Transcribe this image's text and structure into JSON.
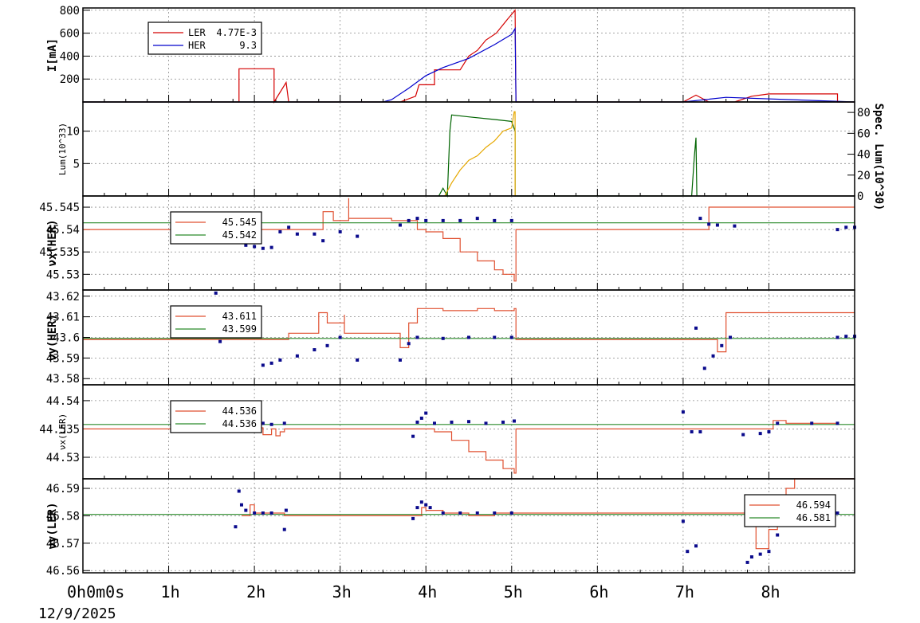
{
  "date_label": "12/9/2025",
  "x_ticks": [
    {
      "h": 0,
      "label": "0h0m0s"
    },
    {
      "h": 1,
      "label": "1h"
    },
    {
      "h": 2,
      "label": "2h"
    },
    {
      "h": 3,
      "label": "3h"
    },
    {
      "h": 4,
      "label": "4h"
    },
    {
      "h": 5,
      "label": "5h"
    },
    {
      "h": 6,
      "label": "6h"
    },
    {
      "h": 7,
      "label": "7h"
    },
    {
      "h": 8,
      "label": "8h"
    }
  ],
  "chart_data": [
    {
      "type": "line",
      "ylabel": "I[mA]",
      "xlim": [
        0,
        9.0
      ],
      "ylim": [
        0,
        820
      ],
      "yticks": [
        200,
        400,
        600,
        800
      ],
      "ytick_labels": [
        "200",
        "400",
        "600",
        "800"
      ],
      "legend_placement": "top-left",
      "series": [
        {
          "name": "LER",
          "legend_value": "4.77E-3",
          "color": "#d40000",
          "x": [
            0,
            1.52,
            1.82,
            1.82,
            2.23,
            2.23,
            2.37,
            2.4,
            3.7,
            3.88,
            3.92,
            4.1,
            4.1,
            4.4,
            4.5,
            4.6,
            4.7,
            4.82,
            4.95,
            5.04,
            5.04,
            5.05,
            7.0,
            7.15,
            7.3,
            7.6,
            7.8,
            8.0,
            8.8,
            8.8,
            9.0
          ],
          "y": [
            0,
            0,
            0,
            290,
            290,
            0,
            170,
            0,
            0,
            50,
            150,
            150,
            280,
            280,
            400,
            450,
            540,
            600,
            720,
            800,
            800,
            0,
            0,
            60,
            0,
            0,
            50,
            70,
            70,
            0,
            0
          ]
        },
        {
          "name": "HER",
          "legend_value": "9.3",
          "color": "#0000cc",
          "x": [
            0,
            3.5,
            3.6,
            3.8,
            4.0,
            4.2,
            4.5,
            4.8,
            5.0,
            5.04,
            5.04,
            5.05,
            7.0,
            7.5,
            9.0
          ],
          "y": [
            0,
            0,
            20,
            120,
            230,
            300,
            380,
            500,
            590,
            640,
            640,
            0,
            0,
            40,
            0
          ]
        }
      ]
    },
    {
      "type": "line",
      "ylabel": "Lum(10^33)",
      "ylabel_right": "Spec. Lum(10^30)",
      "xlim": [
        0,
        9.0
      ],
      "ylim": [
        0,
        14.5
      ],
      "yticks": [
        5,
        10
      ],
      "ytick_labels": [
        "5",
        "10"
      ],
      "y2lim": [
        0,
        90
      ],
      "y2ticks": [
        0,
        20,
        40,
        60,
        80
      ],
      "y2tick_labels": [
        "0",
        "20",
        "40",
        "60",
        "80"
      ],
      "series": [
        {
          "color": "#006400",
          "x": [
            4.15,
            4.2,
            4.25,
            4.28,
            4.3,
            4.5,
            4.8,
            5.0,
            5.04,
            5.04,
            7.1,
            7.13,
            7.15,
            7.16
          ],
          "y": [
            0,
            1.2,
            0,
            10,
            12.5,
            12.2,
            11.8,
            11.5,
            10,
            0,
            0,
            6,
            9,
            0
          ]
        },
        {
          "color": "#e6a800",
          "x": [
            4.22,
            4.3,
            4.4,
            4.5,
            4.6,
            4.7,
            4.8,
            4.9,
            5.0,
            5.03,
            5.04,
            5.04
          ],
          "y": [
            0,
            2,
            4,
            5.5,
            6.2,
            7.5,
            8.5,
            10,
            10.5,
            13,
            13,
            0
          ]
        }
      ]
    },
    {
      "type": "scatter",
      "ylabel": "νx(HER)",
      "xlim": [
        0,
        9.0
      ],
      "ylim": [
        45.5265,
        45.5475
      ],
      "yticks": [
        45.53,
        45.535,
        45.54,
        45.545
      ],
      "ytick_labels": [
        "45.53",
        "45.535",
        "45.54",
        "45.545"
      ],
      "legend_placement": "top-left",
      "series": [
        {
          "name": "45.545",
          "color": "#e05030",
          "kind": "step",
          "x": [
            0,
            2.8,
            2.8,
            2.92,
            3.1,
            3.1,
            3.6,
            3.9,
            4.0,
            4.2,
            4.4,
            4.6,
            4.8,
            4.9,
            5.03,
            5.05,
            7.3,
            7.3,
            9.0
          ],
          "y": [
            45.54,
            45.54,
            45.544,
            45.542,
            45.547,
            45.5425,
            45.542,
            45.54,
            45.5395,
            45.538,
            45.535,
            45.533,
            45.531,
            45.53,
            45.5285,
            45.54,
            45.54,
            45.545,
            45.545
          ]
        },
        {
          "name": "45.542",
          "color": "#2a8a2a",
          "kind": "flat",
          "x": [
            0,
            9.0
          ],
          "y": [
            45.5415,
            45.5415
          ]
        },
        {
          "color": "#0a0a8c",
          "kind": "dots",
          "x": [
            1.55,
            1.6,
            1.75,
            1.9,
            2.0,
            2.1,
            2.2,
            2.3,
            2.4,
            2.5,
            2.7,
            2.8,
            3.0,
            3.2,
            3.7,
            3.8,
            3.9,
            4.0,
            4.2,
            4.4,
            4.6,
            4.8,
            5.0,
            7.2,
            7.3,
            7.4,
            7.6,
            8.8,
            8.9,
            9.0
          ],
          "y": [
            45.5375,
            45.5385,
            45.539,
            45.5365,
            45.5362,
            45.5358,
            45.536,
            45.5395,
            45.5405,
            45.539,
            45.539,
            45.5375,
            45.5395,
            45.5385,
            45.541,
            45.542,
            45.5425,
            45.542,
            45.542,
            45.542,
            45.5425,
            45.542,
            45.542,
            45.5425,
            45.5412,
            45.541,
            45.5408,
            45.54,
            45.5405,
            45.5405
          ]
        }
      ]
    },
    {
      "type": "scatter",
      "ylabel": "νy(HER)",
      "xlim": [
        0,
        9.0
      ],
      "ylim": [
        43.577,
        43.623
      ],
      "yticks": [
        43.58,
        43.59,
        43.6,
        43.61,
        43.62
      ],
      "ytick_labels": [
        "43.58",
        "43.59",
        "43.6",
        "43.61",
        "43.62"
      ],
      "legend_placement": "top-left",
      "series": [
        {
          "name": "43.611",
          "color": "#e05030",
          "kind": "step",
          "x": [
            0,
            2.4,
            2.4,
            2.75,
            2.75,
            2.85,
            3.05,
            3.05,
            3.7,
            3.8,
            3.9,
            4.2,
            4.6,
            4.8,
            5.03,
            5.05,
            7.2,
            7.4,
            7.5,
            7.5,
            9.0
          ],
          "y": [
            43.599,
            43.599,
            43.602,
            43.602,
            43.612,
            43.607,
            43.611,
            43.602,
            43.595,
            43.607,
            43.614,
            43.613,
            43.614,
            43.613,
            43.614,
            43.599,
            43.599,
            43.593,
            43.605,
            43.612,
            43.612
          ]
        },
        {
          "name": "43.599",
          "color": "#2a8a2a",
          "kind": "flat",
          "x": [
            0,
            9.0
          ],
          "y": [
            43.5995,
            43.5995
          ]
        },
        {
          "color": "#0a0a8c",
          "kind": "dots",
          "x": [
            1.55,
            1.6,
            2.1,
            2.2,
            2.3,
            2.5,
            2.7,
            2.85,
            3.0,
            3.2,
            3.7,
            3.8,
            3.9,
            4.2,
            4.5,
            4.8,
            5.0,
            7.15,
            7.25,
            7.35,
            7.45,
            7.55,
            8.8,
            8.9,
            9.0
          ],
          "y": [
            43.6215,
            43.598,
            43.5865,
            43.5875,
            43.589,
            43.591,
            43.594,
            43.596,
            43.6,
            43.589,
            43.589,
            43.597,
            43.6,
            43.5995,
            43.6,
            43.6,
            43.6,
            43.6045,
            43.585,
            43.591,
            43.596,
            43.6,
            43.6,
            43.6005,
            43.6005
          ]
        }
      ]
    },
    {
      "type": "scatter",
      "ylabel": "νx(LER)",
      "xlim": [
        0,
        9.0
      ],
      "ylim": [
        44.5262,
        44.5428
      ],
      "yticks": [
        44.53,
        44.535,
        44.54
      ],
      "ytick_labels": [
        "44.53",
        "44.535",
        "44.54"
      ],
      "legend_placement": "top-left",
      "series": [
        {
          "name": "44.536",
          "color": "#e05030",
          "kind": "step",
          "x": [
            0,
            1.8,
            1.9,
            2.1,
            2.2,
            2.25,
            2.3,
            2.35,
            3.9,
            3.95,
            4.1,
            4.3,
            4.5,
            4.7,
            4.9,
            5.03,
            5.05,
            8.0,
            8.05,
            8.2,
            8.8
          ],
          "y": [
            44.535,
            44.535,
            44.5352,
            44.534,
            44.535,
            44.5338,
            44.5345,
            44.535,
            44.535,
            44.535,
            44.5345,
            44.533,
            44.531,
            44.5295,
            44.528,
            44.5272,
            44.535,
            44.535,
            44.5365,
            44.536,
            44.536
          ]
        },
        {
          "name": "44.536",
          "color": "#2a8a2a",
          "kind": "flat",
          "x": [
            0,
            9.0
          ],
          "y": [
            44.5358,
            44.5358
          ]
        },
        {
          "color": "#0a0a8c",
          "kind": "dots",
          "x": [
            1.8,
            1.9,
            2.0,
            2.1,
            2.2,
            2.35,
            3.85,
            3.9,
            3.95,
            4.0,
            4.1,
            4.3,
            4.5,
            4.7,
            4.9,
            5.03,
            7.0,
            7.1,
            7.2,
            7.7,
            7.9,
            8.0,
            8.1,
            8.5,
            8.8
          ],
          "y": [
            44.5352,
            44.5375,
            44.536,
            44.536,
            44.5358,
            44.536,
            44.5337,
            44.5362,
            44.5369,
            44.5378,
            44.536,
            44.5362,
            44.5363,
            44.536,
            44.5362,
            44.5364,
            44.538,
            44.5345,
            44.5345,
            44.534,
            44.5342,
            44.5345,
            44.536,
            44.536,
            44.536
          ]
        }
      ]
    },
    {
      "type": "scatter",
      "ylabel": "νy(LER)",
      "xlim": [
        0,
        9.0
      ],
      "ylim": [
        46.5592,
        46.5935
      ],
      "yticks": [
        46.56,
        46.57,
        46.58,
        46.59
      ],
      "ytick_labels": [
        "46.56",
        "46.57",
        "46.58",
        "46.59"
      ],
      "legend_placement": "top-right",
      "series": [
        {
          "name": "46.594",
          "color": "#e05030",
          "kind": "step",
          "x": [
            1.85,
            1.95,
            2.0,
            2.3,
            2.35,
            3.85,
            3.95,
            4.0,
            4.2,
            4.5,
            4.8,
            5.03,
            7.85,
            8.0,
            8.1,
            8.2,
            8.3,
            8.5,
            9.0
          ],
          "y": [
            46.58,
            46.584,
            46.581,
            46.581,
            46.58,
            46.58,
            46.583,
            46.582,
            46.581,
            46.58,
            46.581,
            46.581,
            46.568,
            46.575,
            46.582,
            46.59,
            46.595,
            46.594,
            46.594
          ]
        },
        {
          "name": "46.581",
          "color": "#2a8a2a",
          "kind": "flat",
          "x": [
            0,
            9.0
          ],
          "y": [
            46.5805,
            46.5805
          ]
        },
        {
          "color": "#0a0a8c",
          "kind": "dots",
          "x": [
            1.78,
            1.82,
            1.85,
            1.9,
            2.0,
            2.1,
            2.2,
            2.35,
            2.37,
            3.85,
            3.9,
            3.95,
            4.0,
            4.05,
            4.2,
            4.4,
            4.6,
            4.8,
            5.0,
            7.0,
            7.05,
            7.15,
            7.75,
            7.8,
            7.9,
            8.0,
            8.1,
            8.3,
            8.5,
            8.8
          ],
          "y": [
            46.576,
            46.589,
            46.584,
            46.582,
            46.581,
            46.581,
            46.581,
            46.575,
            46.582,
            46.579,
            46.583,
            46.585,
            46.584,
            46.583,
            46.581,
            46.581,
            46.581,
            46.581,
            46.581,
            46.578,
            46.567,
            46.569,
            46.563,
            46.565,
            46.566,
            46.567,
            46.573,
            46.579,
            46.581,
            46.581
          ]
        }
      ]
    }
  ]
}
